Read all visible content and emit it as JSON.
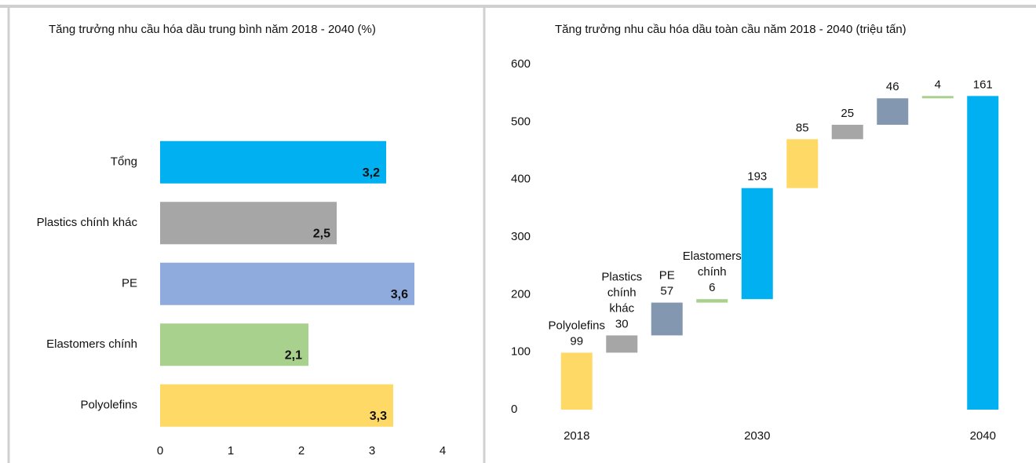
{
  "chart_data": [
    {
      "type": "hbar",
      "title": "Tăng trưởng nhu cầu hóa dầu trung bình năm 2018 - 2040 (%)",
      "categories": [
        "Tổng",
        "Plastics chính khác",
        "PE",
        "Elastomers chính",
        "Polyolefins"
      ],
      "values": [
        3.2,
        2.5,
        3.6,
        2.1,
        3.3
      ],
      "value_labels": [
        "3,2",
        "2,5",
        "3,6",
        "2,1",
        "3,3"
      ],
      "colors": [
        "#00b0f0",
        "#a6a6a6",
        "#8faadc",
        "#a9d18e",
        "#ffd966"
      ],
      "xlim": [
        0,
        4
      ],
      "xticks": [
        0,
        1,
        2,
        3,
        4
      ]
    },
    {
      "type": "waterfall",
      "title": "Tăng trưởng nhu cầu hóa dầu toàn cầu năm 2018 - 2040 (triệu tấn)",
      "categories": [
        "2018",
        null,
        null,
        null,
        "2030",
        null,
        null,
        null,
        null,
        "2040"
      ],
      "segment_labels": [
        "Polyolefins",
        "Plastics chính khác",
        "PE",
        "Elastomers chính",
        null,
        null,
        null,
        null,
        null,
        null
      ],
      "values": [
        99,
        30,
        57,
        6,
        193,
        85,
        25,
        46,
        4,
        161
      ],
      "total_index": 9,
      "colors": [
        "#ffd966",
        "#a6a6a6",
        "#8497b0",
        "#a9d18e",
        "#00b0f0",
        "#ffd966",
        "#a6a6a6",
        "#8497b0",
        "#a9d18e",
        "#00b0f0"
      ],
      "ylim": [
        0,
        600
      ],
      "yticks": [
        0,
        100,
        200,
        300,
        400,
        500,
        600
      ]
    }
  ]
}
